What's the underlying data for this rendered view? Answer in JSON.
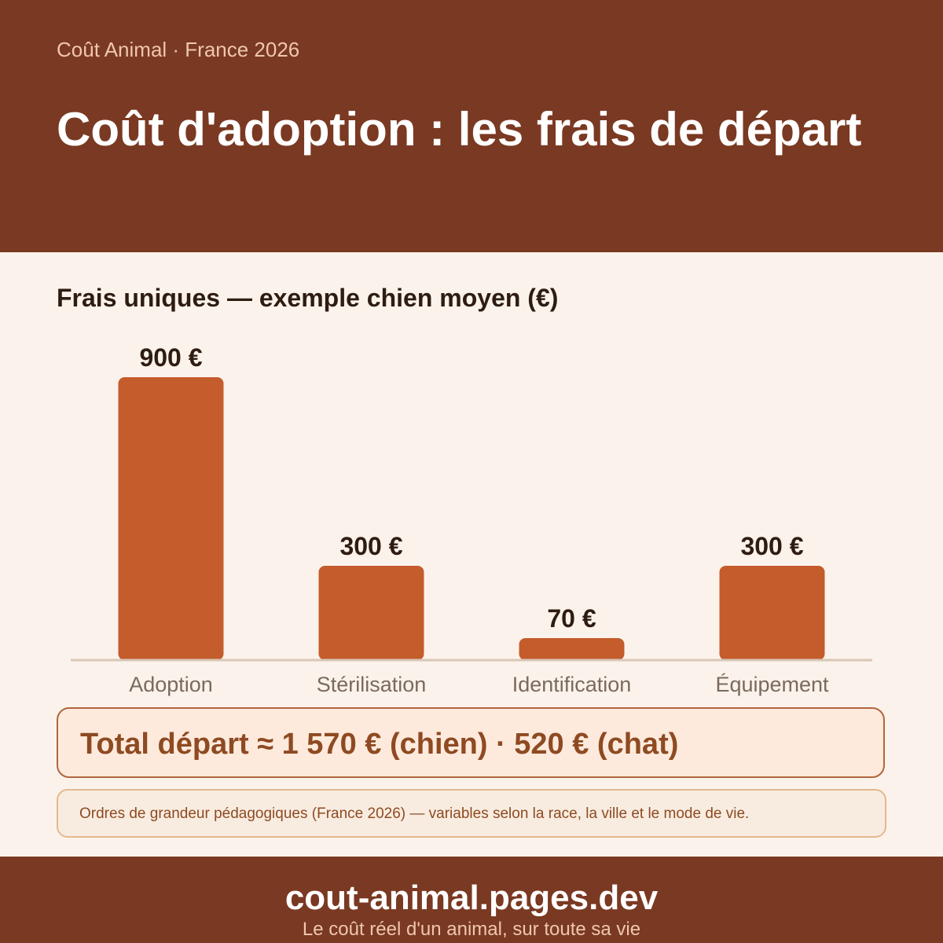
{
  "header": {
    "brand_line": "Coût Animal · France 2026",
    "title": "Coût d'adoption : les frais de départ"
  },
  "chart_data": {
    "type": "bar",
    "title": "Frais uniques — exemple chien moyen (€)",
    "categories": [
      "Adoption",
      "Stérilisation",
      "Identification",
      "Équipement"
    ],
    "values": [
      900,
      300,
      70,
      300
    ],
    "value_labels": [
      "900 €",
      "300 €",
      "70 €",
      "300 €"
    ],
    "xlabel": "",
    "ylabel": "",
    "ylim": [
      0,
      900
    ],
    "grid": false,
    "bar_color": "#C45C2C"
  },
  "summary": {
    "total": "Total départ ≈ 1 570 € (chien) · 520 € (chat)",
    "note": "Ordres de grandeur pédagogiques (France 2026) — variables selon la race, la ville et le mode de vie."
  },
  "footer": {
    "site": "cout-animal.pages.dev",
    "tagline": "Le coût réel d'un animal, sur toute sa vie"
  },
  "colors": {
    "header_bg": "#7A3922",
    "page_bg": "#FBF3EB",
    "bar": "#C45C2C",
    "accent_text": "#8E4A22"
  }
}
